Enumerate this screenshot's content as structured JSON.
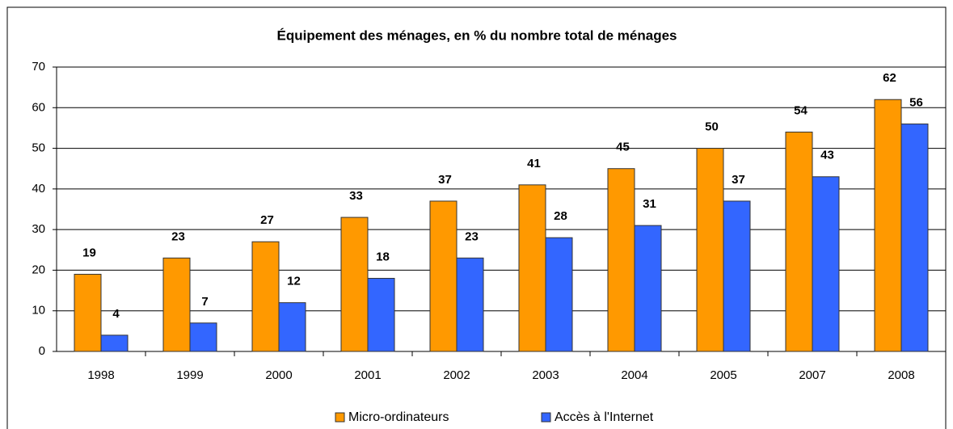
{
  "chart_data": {
    "type": "bar",
    "title": "Équipement des ménages, en % du nombre total de ménages",
    "categories": [
      "1998",
      "1999",
      "2000",
      "2001",
      "2002",
      "2003",
      "2004",
      "2005",
      "2007",
      "2008"
    ],
    "series": [
      {
        "name": "Micro-ordinateurs",
        "color": "#ff9900",
        "values": [
          19,
          23,
          27,
          33,
          37,
          41,
          45,
          50,
          54,
          62
        ]
      },
      {
        "name": "Accès à l'Internet",
        "color": "#3366ff",
        "values": [
          4,
          7,
          12,
          18,
          23,
          28,
          31,
          37,
          43,
          56
        ]
      }
    ],
    "ylim": [
      0,
      70
    ],
    "yticks": [
      0,
      10,
      20,
      30,
      40,
      50,
      60,
      70
    ],
    "grid": true,
    "legend": "bottom"
  }
}
